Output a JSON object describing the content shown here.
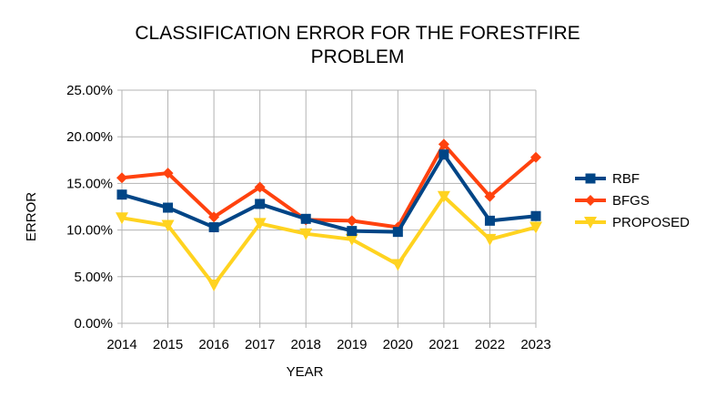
{
  "chart_data": {
    "type": "line",
    "title_lines": [
      "CLASSIFICATION ERROR FOR THE FORESTFIRE",
      "PROBLEM"
    ],
    "xlabel": "YEAR",
    "ylabel": "ERROR",
    "categories": [
      "2014",
      "2015",
      "2016",
      "2017",
      "2018",
      "2019",
      "2020",
      "2021",
      "2022",
      "2023"
    ],
    "y_ticks": [
      "0.00%",
      "5.00%",
      "10.00%",
      "15.00%",
      "20.00%",
      "25.00%"
    ],
    "ylim": [
      0,
      25
    ],
    "grid": true,
    "legend_position": "right",
    "series": [
      {
        "name": "RBF",
        "color": "#004586",
        "marker": "square",
        "values": [
          13.8,
          12.4,
          10.3,
          12.8,
          11.2,
          9.9,
          9.8,
          18.1,
          11.0,
          11.5
        ]
      },
      {
        "name": "BFGS",
        "color": "#ff420e",
        "marker": "diamond",
        "values": [
          15.6,
          16.1,
          11.4,
          14.6,
          11.1,
          11.0,
          10.3,
          19.2,
          13.6,
          17.8
        ]
      },
      {
        "name": "PROPOSED",
        "color": "#ffd320",
        "marker": "triangle-down",
        "values": [
          11.3,
          10.5,
          4.1,
          10.7,
          9.6,
          9.0,
          6.3,
          13.6,
          9.0,
          10.3
        ]
      }
    ]
  }
}
